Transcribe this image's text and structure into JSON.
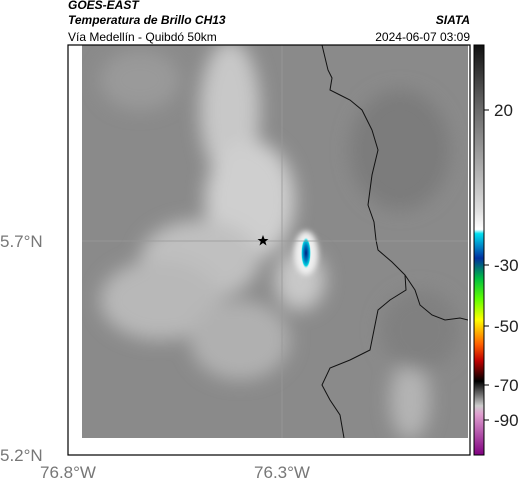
{
  "header": {
    "satellite": "GOES-EAST",
    "product": "Temperatura de Brillo CH13",
    "route": "Vía Medellín - Quibdó 50km",
    "source": "SIATA",
    "datetime": "2024-06-07 03:09"
  },
  "axes": {
    "lat_labels": [
      "5.7°N",
      "5.2°N"
    ],
    "lon_labels": [
      "76.8°W",
      "76.3°W"
    ]
  },
  "colorbar": {
    "ticks": [
      20,
      -30,
      -50,
      -70,
      -90
    ]
  }
}
